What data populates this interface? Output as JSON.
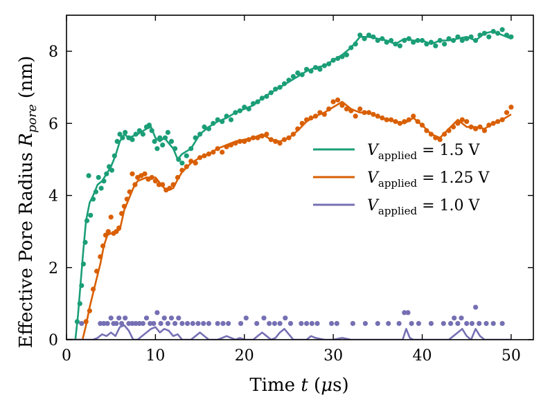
{
  "chart_data": {
    "type": "line+scatter",
    "xlabel": "Time t (μs)",
    "ylabel": "Effective Pore Radius R_pore (nm)",
    "xlim": [
      0,
      52.5
    ],
    "ylim": [
      0,
      9
    ],
    "xticks": [
      0,
      10,
      20,
      30,
      40,
      50
    ],
    "yticks": [
      0,
      2,
      4,
      6,
      8
    ],
    "legend_position": "center-right",
    "series": [
      {
        "name": "V_applied = 1.5 V",
        "color": "#1b9e77",
        "x": [
          0,
          1.0,
          1.3,
          1.6,
          1.9,
          2.2,
          2.6,
          3.0,
          3.5,
          4.0,
          4.5,
          5.0,
          5.5,
          6.0,
          6.5,
          7.0,
          8.0,
          9.0,
          9.5,
          10.0,
          10.5,
          11.0,
          11.5,
          12.0,
          12.5,
          13.0,
          14.0,
          15.0,
          16.0,
          17.0,
          18.0,
          19.0,
          20.0,
          21.0,
          22.0,
          23.0,
          24.0,
          25.0,
          26.0,
          27.0,
          28.0,
          29.0,
          30.0,
          31.0,
          32.0,
          33.0,
          34.0,
          35.0,
          36.0,
          37.0,
          38.0,
          39.0,
          40.0,
          41.0,
          42.0,
          43.0,
          44.0,
          45.0,
          46.0,
          47.0,
          48.0,
          49.0,
          50.0
        ],
        "y": [
          0,
          0,
          0.7,
          1.6,
          2.5,
          3.3,
          3.8,
          4.0,
          4.3,
          4.4,
          4.6,
          4.8,
          5.1,
          5.5,
          5.7,
          5.6,
          5.7,
          5.85,
          5.9,
          5.6,
          5.5,
          5.6,
          5.45,
          5.3,
          5.0,
          5.15,
          5.3,
          5.7,
          5.9,
          6.05,
          6.15,
          6.3,
          6.4,
          6.5,
          6.7,
          6.85,
          7.0,
          7.15,
          7.3,
          7.45,
          7.55,
          7.6,
          7.75,
          7.9,
          8.1,
          8.4,
          8.4,
          8.35,
          8.3,
          8.2,
          8.35,
          8.3,
          8.3,
          8.2,
          8.3,
          8.3,
          8.35,
          8.4,
          8.3,
          8.5,
          8.55,
          8.45,
          8.35
        ]
      },
      {
        "name": "V_applied = 1.25 V",
        "color": "#d95f02",
        "x": [
          0,
          1.8,
          2.2,
          2.6,
          3.0,
          3.4,
          3.8,
          4.2,
          4.6,
          5.0,
          5.5,
          6.0,
          6.5,
          7.0,
          7.5,
          8.0,
          9.0,
          10.0,
          10.5,
          11.0,
          11.5,
          12.0,
          12.5,
          13.0,
          14.0,
          15.0,
          16.0,
          17.0,
          18.0,
          19.0,
          20.0,
          21.0,
          22.0,
          23.0,
          24.0,
          25.0,
          26.0,
          27.0,
          28.0,
          29.0,
          30.0,
          31.0,
          32.0,
          33.0,
          34.0,
          35.0,
          36.0,
          37.0,
          38.0,
          39.0,
          40.0,
          41.0,
          42.0,
          43.0,
          44.0,
          45.0,
          46.0,
          47.0,
          48.0,
          49.0,
          50.0
        ],
        "y": [
          0,
          0,
          0.4,
          0.9,
          1.3,
          1.7,
          2.1,
          2.6,
          2.9,
          2.95,
          3.0,
          3.05,
          3.6,
          3.9,
          4.2,
          4.4,
          4.5,
          4.5,
          4.35,
          4.2,
          4.15,
          4.2,
          4.45,
          4.65,
          4.9,
          5.05,
          5.15,
          5.3,
          5.4,
          5.5,
          5.55,
          5.6,
          5.7,
          5.55,
          5.5,
          5.6,
          5.8,
          6.05,
          6.2,
          6.3,
          6.45,
          6.6,
          6.4,
          6.3,
          6.3,
          6.2,
          6.1,
          6.05,
          6.0,
          6.15,
          5.95,
          5.7,
          5.6,
          5.85,
          6.1,
          5.9,
          5.9,
          5.85,
          6.0,
          6.1,
          6.25
        ]
      },
      {
        "name": "V_applied = 1.0 V",
        "color": "#7570b3",
        "x": [
          0,
          3.0,
          3.5,
          4.0,
          4.5,
          5.0,
          5.5,
          6.0,
          6.5,
          7.0,
          7.5,
          8.0,
          8.5,
          9.0,
          9.5,
          10.0,
          10.5,
          11.0,
          11.5,
          12.0,
          12.5,
          13.0,
          13.5,
          14.0,
          14.5,
          15.0,
          15.5,
          16.0,
          17.0,
          17.5,
          18.0,
          19.0,
          19.5,
          20.0,
          21.0,
          21.5,
          22.0,
          22.5,
          23.0,
          23.5,
          24.0,
          24.5,
          25.0,
          25.5,
          26.0,
          27.0,
          27.5,
          28.0,
          29.0,
          30.0,
          31.0,
          32.0,
          33.0,
          34.0,
          35.0,
          36.0,
          37.0,
          37.8,
          38.2,
          38.6,
          39.0,
          40.0,
          41.0,
          42.0,
          43.0,
          43.5,
          44.0,
          44.5,
          45.0,
          45.5,
          46.0,
          46.5,
          47.0,
          48.0,
          49.0,
          50.0
        ],
        "y": [
          0,
          0,
          0.05,
          0.15,
          0.1,
          0.2,
          0.1,
          0.35,
          0.4,
          0.25,
          0.0,
          0.0,
          0.1,
          0.2,
          0.3,
          0.35,
          0.2,
          0.3,
          0.25,
          0.1,
          0.15,
          0.0,
          0.0,
          0.0,
          0.1,
          0.2,
          0.1,
          0.0,
          0.0,
          0.05,
          0.1,
          0.0,
          0.05,
          0.0,
          0.0,
          0.1,
          0.2,
          0.1,
          0.0,
          0.05,
          0.2,
          0.3,
          0.15,
          0.0,
          0.0,
          0.0,
          0.1,
          0.05,
          0.0,
          0.0,
          0.05,
          0.0,
          0.0,
          0.0,
          0.0,
          0.0,
          0.0,
          0.0,
          0.3,
          0.05,
          0.0,
          0.0,
          0.0,
          0.0,
          0.0,
          0.1,
          0.2,
          0.3,
          0.1,
          0.0,
          0.3,
          0.1,
          0.0,
          0.0,
          0.0,
          0.0
        ]
      }
    ],
    "scatter_points": [
      {
        "series": "V_applied = 1.5 V",
        "x": [
          1.2,
          1.5,
          1.7,
          1.9,
          2.1,
          2.3,
          2.5,
          2.7,
          3.0,
          3.3,
          3.6,
          3.9,
          4.2,
          4.5,
          4.8,
          5.1,
          5.4,
          5.7,
          6.0,
          6.3,
          6.6,
          7.0,
          7.4,
          7.8,
          8.2,
          8.6,
          9.0,
          9.3,
          9.6,
          9.9,
          10.2,
          10.5,
          10.8,
          11.1,
          11.4,
          11.8,
          12.2,
          12.6,
          13.0,
          13.5,
          14.0,
          14.5,
          15.0,
          15.5,
          16.0,
          16.5,
          17.0,
          17.5,
          18.0,
          18.5,
          19.0,
          19.5,
          20.0,
          20.5,
          21.0,
          21.5,
          22.0,
          22.5,
          23.0,
          23.5,
          24.0,
          24.5,
          25.0,
          25.5,
          26.0,
          26.5,
          27.0,
          27.5,
          28.0,
          28.5,
          29.0,
          29.5,
          30.0,
          30.5,
          31.0,
          31.5,
          32.0,
          32.5,
          33.0,
          33.5,
          34.0,
          34.5,
          35.0,
          35.5,
          36.0,
          36.5,
          37.0,
          37.5,
          38.0,
          38.5,
          39.0,
          39.5,
          40.0,
          40.5,
          41.0,
          41.5,
          42.0,
          42.5,
          43.0,
          43.5,
          44.0,
          44.5,
          45.0,
          45.5,
          46.0,
          46.5,
          47.0,
          47.5,
          48.0,
          48.5,
          49.0,
          49.5,
          50.0
        ],
        "y": [
          0.5,
          1.0,
          1.5,
          2.1,
          2.7,
          3.3,
          4.55,
          3.45,
          3.9,
          4.1,
          4.5,
          4.2,
          4.4,
          4.6,
          4.8,
          4.7,
          5.1,
          5.5,
          5.7,
          5.6,
          5.75,
          5.6,
          5.55,
          5.7,
          5.8,
          5.7,
          5.9,
          5.95,
          5.8,
          5.5,
          5.3,
          5.6,
          5.4,
          5.6,
          5.75,
          5.5,
          5.3,
          5.0,
          4.9,
          5.1,
          5.3,
          5.6,
          5.7,
          5.9,
          5.85,
          6.0,
          6.1,
          6.05,
          6.2,
          6.1,
          6.3,
          6.35,
          6.45,
          6.4,
          6.55,
          6.6,
          6.7,
          6.75,
          6.85,
          6.95,
          7.0,
          7.1,
          7.2,
          7.3,
          7.4,
          7.35,
          7.5,
          7.45,
          7.55,
          7.5,
          7.6,
          7.65,
          7.75,
          7.8,
          7.85,
          7.9,
          8.1,
          8.2,
          8.45,
          8.35,
          8.45,
          8.4,
          8.3,
          8.35,
          8.25,
          8.3,
          8.2,
          8.15,
          8.3,
          8.35,
          8.25,
          8.3,
          8.3,
          8.2,
          8.25,
          8.15,
          8.3,
          8.2,
          8.35,
          8.3,
          8.4,
          8.3,
          8.35,
          8.4,
          8.3,
          8.45,
          8.5,
          8.4,
          8.55,
          8.5,
          8.6,
          8.45,
          8.4
        ]
      },
      {
        "series": "V_applied = 1.25 V",
        "x": [
          2.2,
          2.6,
          3.0,
          3.4,
          3.8,
          4.1,
          4.4,
          4.7,
          5.0,
          5.3,
          5.6,
          5.9,
          6.2,
          6.5,
          6.8,
          7.1,
          7.4,
          7.7,
          8.0,
          8.4,
          8.8,
          9.2,
          9.6,
          10.0,
          10.4,
          10.8,
          11.2,
          11.6,
          12.0,
          12.5,
          13.0,
          13.5,
          14.0,
          14.5,
          15.0,
          15.5,
          16.0,
          16.5,
          17.0,
          17.5,
          18.0,
          18.5,
          19.0,
          19.5,
          20.0,
          20.5,
          21.0,
          21.5,
          22.0,
          22.5,
          23.0,
          23.5,
          24.0,
          24.5,
          25.0,
          25.5,
          26.0,
          26.5,
          27.0,
          27.5,
          28.0,
          28.5,
          29.0,
          29.5,
          30.0,
          30.5,
          31.0,
          31.5,
          32.0,
          32.5,
          33.0,
          33.5,
          34.0,
          34.5,
          35.0,
          35.5,
          36.0,
          36.5,
          37.0,
          37.5,
          38.0,
          38.5,
          39.0,
          39.5,
          40.0,
          40.5,
          41.0,
          41.5,
          42.0,
          42.5,
          43.0,
          43.5,
          44.0,
          44.5,
          45.0,
          45.5,
          46.0,
          46.5,
          47.0,
          47.5,
          48.0,
          48.5,
          49.0,
          49.5,
          50.0
        ],
        "y": [
          0.5,
          0.8,
          1.4,
          1.9,
          2.3,
          2.6,
          2.9,
          3.0,
          3.4,
          2.95,
          3.0,
          3.1,
          3.5,
          3.7,
          3.9,
          4.1,
          4.6,
          4.3,
          4.5,
          4.55,
          4.6,
          4.45,
          4.5,
          4.4,
          4.3,
          4.3,
          4.15,
          4.2,
          4.3,
          4.5,
          4.7,
          4.8,
          4.95,
          4.9,
          5.05,
          5.1,
          5.15,
          5.2,
          5.3,
          5.2,
          5.35,
          5.4,
          5.45,
          5.5,
          5.5,
          5.55,
          5.6,
          5.6,
          5.65,
          5.7,
          5.55,
          5.5,
          5.45,
          5.55,
          5.6,
          5.7,
          5.85,
          6.0,
          6.1,
          6.15,
          6.2,
          6.3,
          6.25,
          6.4,
          6.6,
          6.65,
          6.5,
          6.4,
          6.35,
          6.2,
          6.4,
          6.3,
          6.3,
          6.25,
          6.2,
          6.15,
          6.1,
          6.1,
          6.05,
          6.0,
          6.05,
          6.1,
          6.2,
          6.05,
          5.95,
          5.8,
          5.7,
          5.6,
          5.55,
          5.7,
          5.8,
          5.9,
          6.0,
          6.1,
          6.05,
          5.9,
          5.85,
          5.9,
          5.8,
          5.95,
          6.0,
          6.05,
          6.1,
          6.3,
          6.45
        ]
      },
      {
        "series": "V_applied = 1.0 V",
        "x": [
          1.7,
          3.8,
          4.2,
          4.6,
          5.0,
          5.3,
          5.6,
          5.9,
          6.2,
          6.6,
          7.0,
          7.4,
          7.8,
          8.2,
          8.6,
          9.0,
          9.4,
          9.8,
          10.2,
          10.6,
          11.0,
          11.4,
          11.8,
          12.2,
          12.6,
          13.0,
          13.6,
          14.2,
          14.8,
          15.4,
          16.0,
          17.0,
          17.6,
          18.2,
          19.6,
          20.2,
          21.4,
          22.2,
          22.8,
          23.4,
          24.0,
          24.6,
          25.2,
          26.4,
          27.0,
          27.6,
          28.2,
          29.8,
          30.4,
          32.2,
          33.6,
          35.0,
          36.2,
          37.4,
          38.0,
          38.4,
          38.8,
          39.6,
          41.0,
          42.4,
          43.2,
          43.6,
          44.0,
          44.4,
          45.0,
          45.6,
          46.0,
          46.4,
          47.2,
          48.0,
          49.0
        ],
        "y": [
          0.45,
          0.45,
          0.45,
          0.45,
          0.6,
          0.45,
          0.45,
          0.6,
          0.45,
          0.6,
          0.45,
          0.45,
          0.45,
          0.45,
          0.45,
          0.6,
          0.45,
          0.45,
          0.75,
          0.45,
          0.6,
          0.45,
          0.6,
          0.45,
          0.6,
          0.45,
          0.45,
          0.45,
          0.45,
          0.45,
          0.45,
          0.45,
          0.45,
          0.45,
          0.45,
          0.6,
          0.45,
          0.6,
          0.45,
          0.45,
          0.45,
          0.6,
          0.45,
          0.45,
          0.45,
          0.45,
          0.45,
          0.45,
          0.45,
          0.45,
          0.45,
          0.45,
          0.45,
          0.45,
          0.75,
          0.75,
          0.45,
          0.45,
          0.45,
          0.45,
          0.45,
          0.6,
          0.45,
          0.6,
          0.45,
          0.45,
          0.9,
          0.45,
          0.45,
          0.45,
          0.45
        ]
      }
    ]
  }
}
